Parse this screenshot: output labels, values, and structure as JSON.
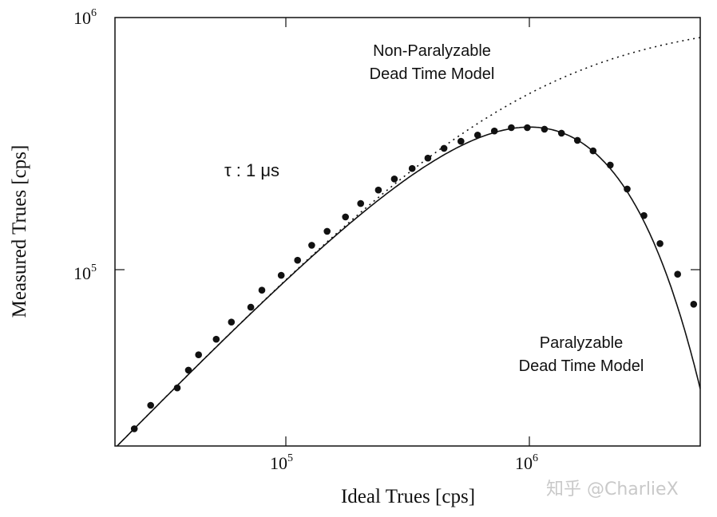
{
  "chart_data": {
    "type": "line",
    "title": "",
    "xlabel": "Ideal Trues [cps]",
    "ylabel": "Measured Trues [cps]",
    "xscale": "log",
    "yscale": "log",
    "xlim": [
      20000,
      5000000
    ],
    "ylim": [
      20000,
      1000000
    ],
    "x_ticks": [
      {
        "value": 100000,
        "label_base": "10",
        "label_exp": "5"
      },
      {
        "value": 1000000,
        "label_base": "10",
        "label_exp": "6"
      }
    ],
    "y_ticks": [
      {
        "value": 100000,
        "label_base": "10",
        "label_exp": "5"
      },
      {
        "value": 1000000,
        "label_base": "10",
        "label_exp": "6"
      }
    ],
    "grid": false,
    "legend": null,
    "annotations": [
      {
        "id": "tau",
        "text": "τ : 1 μs"
      },
      {
        "id": "nonpar_line1",
        "text": "Non-Paralyzable"
      },
      {
        "id": "nonpar_line2",
        "text": "Dead Time Model"
      },
      {
        "id": "par_line1",
        "text": "Paralyzable"
      },
      {
        "id": "par_line2",
        "text": "Dead Time Model"
      }
    ],
    "dead_time_seconds": 1e-06,
    "series": [
      {
        "name": "Non-Paralyzable Dead Time Model",
        "style": "dotted",
        "formula": "m = n / (1 + n*tau)",
        "x": [
          20000,
          50000,
          100000,
          200000,
          300000,
          500000,
          700000,
          1000000,
          1500000,
          2000000,
          3000000,
          4000000,
          5000000
        ],
        "values": [
          19608,
          47619,
          90909,
          166667,
          230769,
          333333,
          411765,
          500000,
          600000,
          666667,
          750000,
          800000,
          833333
        ]
      },
      {
        "name": "Paralyzable Dead Time Model",
        "style": "solid",
        "formula": "m = n * exp(-n*tau)",
        "x": [
          20000,
          50000,
          100000,
          200000,
          300000,
          500000,
          700000,
          1000000,
          1500000,
          2000000,
          3000000,
          4000000,
          5000000
        ],
        "values": [
          19604,
          47561,
          90484,
          163746,
          222245,
          303265,
          347610,
          367879,
          334695,
          270671,
          149361,
          73263,
          33690
        ]
      },
      {
        "name": "Measured data",
        "style": "markers",
        "x": [
          24000,
          28000,
          36000,
          40000,
          44000,
          52000,
          60000,
          72000,
          80000,
          96000,
          112000,
          128000,
          148000,
          176000,
          203000,
          240000,
          279000,
          330000,
          383000,
          446000,
          523000,
          612000,
          717000,
          841000,
          978000,
          1150000,
          1350000,
          1570000,
          1820000,
          2140000,
          2510000,
          2940000,
          3420000,
          4040000,
          4700000
        ],
        "values": [
          23400,
          29000,
          34000,
          40000,
          46000,
          53000,
          62000,
          71000,
          83000,
          95000,
          109000,
          125000,
          142000,
          162000,
          183000,
          207000,
          229000,
          252000,
          277000,
          303000,
          323000,
          342000,
          355000,
          366000,
          366000,
          361000,
          348000,
          326000,
          296000,
          260000,
          209000,
          164000,
          127000,
          96000,
          73000
        ]
      }
    ]
  },
  "labels": {
    "xlabel": "Ideal Trues [cps]",
    "ylabel": "Measured Trues [cps]",
    "x_tick_5_base": "10",
    "x_tick_5_exp": "5",
    "x_tick_6_base": "10",
    "x_tick_6_exp": "6",
    "y_tick_5_base": "10",
    "y_tick_5_exp": "5",
    "y_tick_6_base": "10",
    "y_tick_6_exp": "6",
    "tau": "τ : 1 μs",
    "nonpar_line1": "Non-Paralyzable",
    "nonpar_line2": "Dead Time Model",
    "par_line1": "Paralyzable",
    "par_line2": "Dead Time Model",
    "watermark": "知乎 @CharlieX"
  },
  "colors": {
    "ink": "#111111",
    "background": "#ffffff",
    "watermark": "#c9c9c9"
  }
}
